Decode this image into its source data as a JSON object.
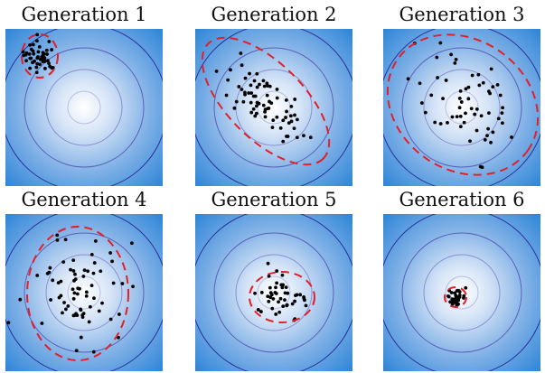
{
  "panels": [
    {
      "title": "Generation 1"
    },
    {
      "title": "Generation 2"
    },
    {
      "title": "Generation 3"
    },
    {
      "title": "Generation 4"
    },
    {
      "title": "Generation 5"
    },
    {
      "title": "Generation 6"
    }
  ]
}
